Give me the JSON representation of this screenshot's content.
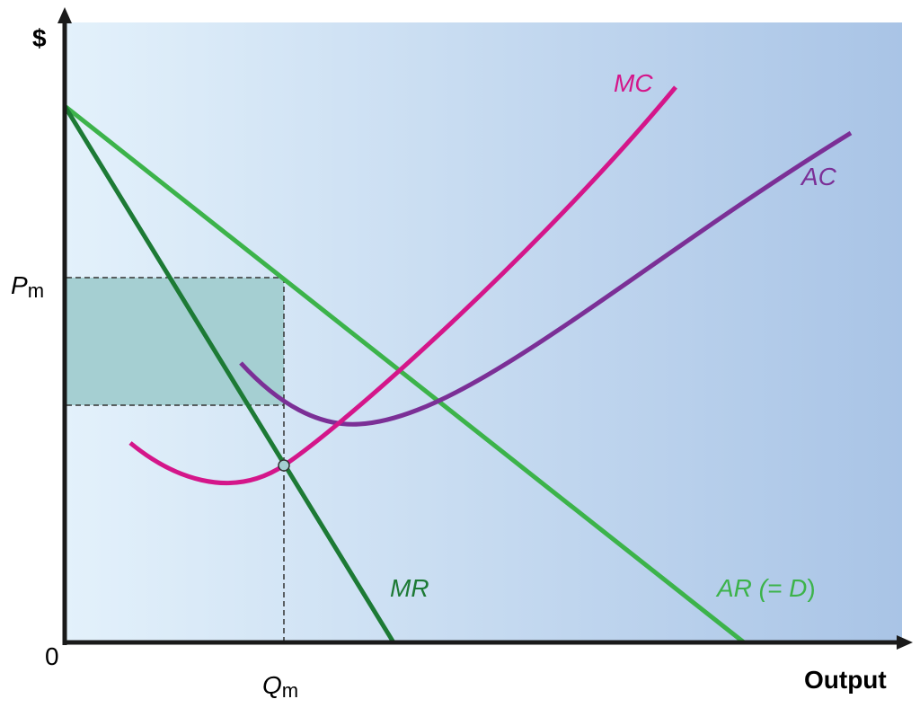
{
  "chart_data": {
    "type": "line",
    "title": "",
    "ylabel": "$",
    "xlabel": "Output",
    "origin_label": "0",
    "price_label": {
      "main": "P",
      "sub": "m"
    },
    "quantity_label": {
      "main": "Q",
      "sub": "m"
    },
    "series": [
      {
        "name": "MC",
        "color": "#d4168a"
      },
      {
        "name": "AC",
        "color": "#7b2f96"
      },
      {
        "name": "MR",
        "color": "#1d7a35"
      },
      {
        "name": "AR (= D)",
        "color": "#3cb34a",
        "parts": [
          "AR (= ",
          "D",
          ")"
        ]
      }
    ],
    "profit_area_color": "#a5cfd2"
  }
}
